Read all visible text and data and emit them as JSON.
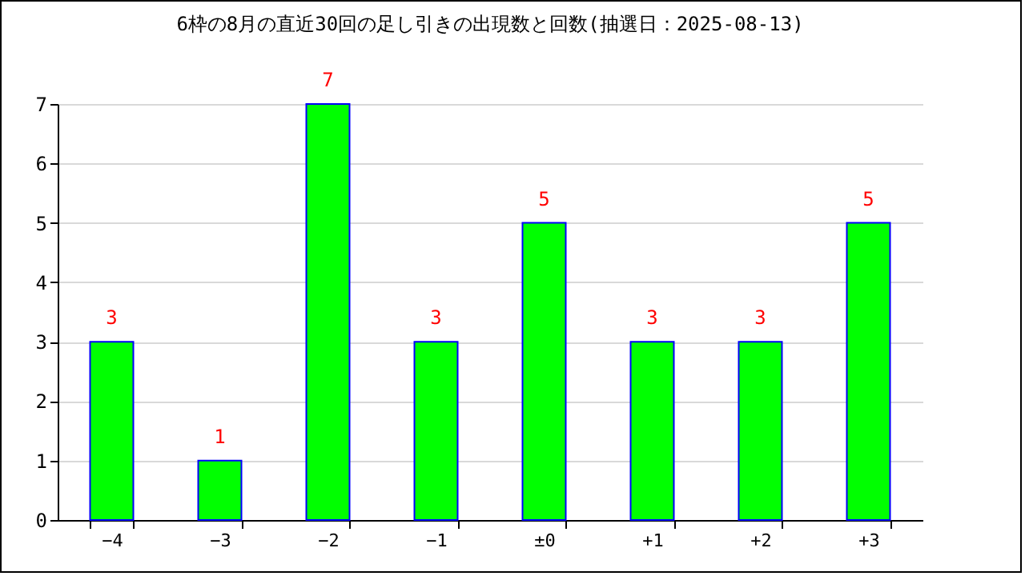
{
  "chart_data": {
    "type": "bar",
    "title": "6枠の8月の直近30回の足し引きの出現数と回数(抽選日：2025-08-13)",
    "categories": [
      "−4",
      "−3",
      "−2",
      "−1",
      "±0",
      "+1",
      "+2",
      "+3"
    ],
    "values": [
      3,
      1,
      7,
      3,
      5,
      3,
      3,
      5
    ],
    "color": "#00ff00",
    "ylim": [
      0,
      7
    ],
    "yticks": [
      0,
      1,
      2,
      3,
      4,
      5,
      6,
      7
    ],
    "grid": "y",
    "data_labels": true
  }
}
